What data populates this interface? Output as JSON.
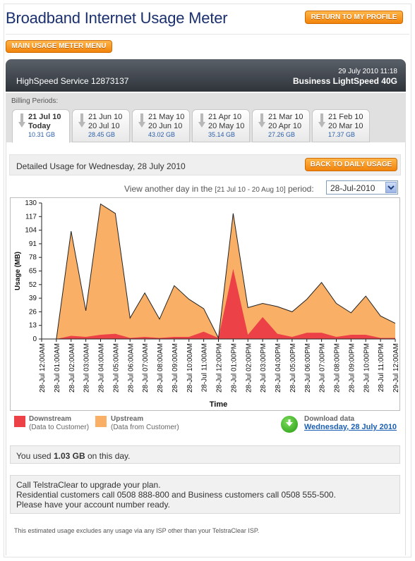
{
  "header": {
    "title": "Broadband Internet Usage Meter",
    "return_label": "RETURN TO MY PROFILE",
    "menu_label": "MAIN USAGE METER MENU"
  },
  "service": {
    "name": "HighSpeed Service 12873137",
    "datetime": "29 July 2010 11:18",
    "plan": "Business LightSpeed 40G"
  },
  "billing": {
    "label": "Billing Periods:",
    "periods": [
      {
        "from": "21 Jul 10",
        "to": "Today",
        "usage": "10.31 GB",
        "active": true
      },
      {
        "from": "21 Jun 10",
        "to": "20 Jul 10",
        "usage": "28.45 GB"
      },
      {
        "from": "21 May 10",
        "to": "20 Jun 10",
        "usage": "43.02 GB"
      },
      {
        "from": "21 Apr 10",
        "to": "20 May 10",
        "usage": "35.14 GB"
      },
      {
        "from": "21 Mar 10",
        "to": "20 Apr 10",
        "usage": "27.26 GB"
      },
      {
        "from": "21 Feb 10",
        "to": "20 Mar 10",
        "usage": "17.37 GB"
      }
    ]
  },
  "detail": {
    "heading": "Detailed Usage for Wednesday, 28 July 2010",
    "back_label": "BACK TO DAILY USAGE",
    "view_prefix": "View another day in the",
    "view_range": "[21 Jul 10 - 20 Aug 10]",
    "view_suffix": "period:",
    "selected_day": "28-Jul-2010"
  },
  "colors": {
    "downstream": "#ec4146",
    "upstream": "#f9b066",
    "accent": "#f28a12",
    "link": "#1a5fb4"
  },
  "chart_data": {
    "type": "area",
    "xlabel": "Time",
    "ylabel": "Usage (MB)",
    "ylim": [
      0,
      130
    ],
    "yticks": [
      0,
      13,
      26,
      39,
      52,
      65,
      78,
      91,
      104,
      117,
      130
    ],
    "x": [
      "28-Jul 12:00AM",
      "28-Jul 01:00AM",
      "28-Jul 02:00AM",
      "28-Jul 03:00AM",
      "28-Jul 04:00AM",
      "28-Jul 05:00AM",
      "28-Jul 06:00AM",
      "28-Jul 07:00AM",
      "28-Jul 08:00AM",
      "28-Jul 09:00AM",
      "28-Jul 10:00AM",
      "28-Jul 11:00AM",
      "28-Jul 12:00PM",
      "28-Jul 01:00PM",
      "28-Jul 02:00PM",
      "28-Jul 03:00PM",
      "28-Jul 04:00PM",
      "28-Jul 05:00PM",
      "28-Jul 06:00PM",
      "28-Jul 07:00PM",
      "28-Jul 08:00PM",
      "28-Jul 09:00PM",
      "28-Jul 10:00PM",
      "28-Jul 11:00PM",
      "29-Jul 12:00AM"
    ],
    "stacked": true,
    "series": [
      {
        "name": "Downstream",
        "values": [
          0,
          0,
          3,
          2,
          4,
          5,
          1,
          2,
          1,
          2,
          2,
          7,
          1,
          67,
          4,
          21,
          5,
          2,
          6,
          6,
          2,
          4,
          4,
          1,
          1
        ]
      },
      {
        "name": "Upstream",
        "values": [
          0,
          0,
          100,
          25,
          125,
          115,
          19,
          42,
          18,
          49,
          36,
          22,
          0,
          53,
          26,
          13,
          26,
          24,
          32,
          48,
          32,
          21,
          37,
          21,
          14
        ]
      }
    ],
    "legend": [
      {
        "name": "Downstream",
        "detail": "(Data to Customer)"
      },
      {
        "name": "Upstream",
        "detail": "(Data from Customer)"
      }
    ]
  },
  "download": {
    "title": "Download data",
    "link": "Wednesday, 28 July 2010"
  },
  "usage_summary": {
    "prefix": "You used",
    "amount": "1.03 GB",
    "suffix": "on this day."
  },
  "upgrade": {
    "line1": "Call TelstraClear to upgrade your plan.",
    "line2": "Residential customers call 0508 888-800 and Business customers call 0508 555-500.",
    "line3": "Please have your account number ready."
  },
  "footnote": "This estimated usage excludes any usage via any ISP other than your TelstraClear ISP."
}
